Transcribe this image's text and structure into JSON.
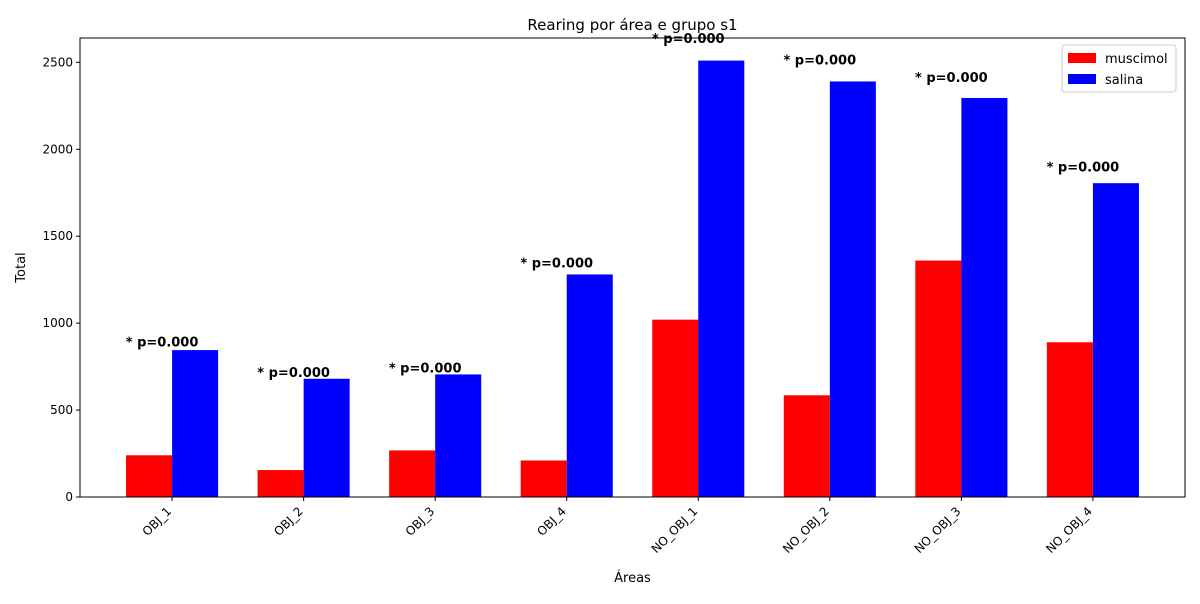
{
  "chart_data": {
    "type": "bar",
    "title": "Rearing por área e grupo s1",
    "xlabel": "Áreas",
    "ylabel": "Total",
    "ylim": [
      0,
      2640
    ],
    "yticks": [
      0,
      500,
      1000,
      1500,
      2000,
      2500
    ],
    "categories": [
      "OBJ_1",
      "OBJ_2",
      "OBJ_3",
      "OBJ_4",
      "NO_OBJ_1",
      "NO_OBJ_2",
      "NO_OBJ_3",
      "NO_OBJ_4"
    ],
    "series": [
      {
        "name": "muscimol",
        "color": "#ff0000",
        "values": [
          240,
          155,
          268,
          210,
          1020,
          585,
          1360,
          890
        ]
      },
      {
        "name": "salina",
        "color": "#0000ff",
        "values": [
          845,
          680,
          705,
          1280,
          2510,
          2390,
          2295,
          1805
        ]
      }
    ],
    "annotations": [
      "* p=0.000",
      "* p=0.000",
      "* p=0.000",
      "* p=0.000",
      "* p=0.000",
      "* p=0.000",
      "* p=0.000",
      "* p=0.000"
    ],
    "legend_position": "top-right",
    "grid": false
  }
}
